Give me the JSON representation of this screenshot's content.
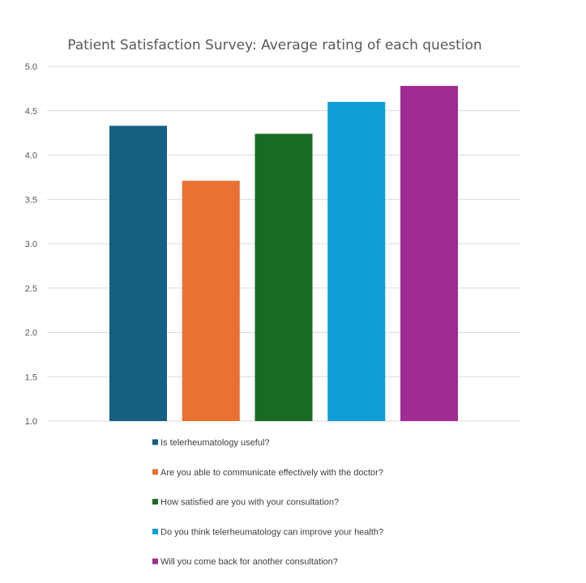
{
  "chart_data": {
    "type": "bar",
    "title": "Patient Satisfaction Survey: Average rating of each question",
    "xlabel": "",
    "ylabel": "",
    "ylim": [
      1.0,
      5.0
    ],
    "yticks": [
      "1.0",
      "1.5",
      "2.0",
      "2.5",
      "3.0",
      "3.5",
      "4.0",
      "4.5",
      "5.0"
    ],
    "grid": true,
    "legend_position": "bottom",
    "series": [
      {
        "name": "Is telerheumatology useful?",
        "value": 4.33,
        "color": "#156082"
      },
      {
        "name": "Are you able to communicate effectively with the doctor?",
        "value": 3.71,
        "color": "#E97132"
      },
      {
        "name": "How satisfied are you with your consultation?",
        "value": 4.24,
        "color": "#196B24"
      },
      {
        "name": "Do you think telerheumatology can improve your health?",
        "value": 4.6,
        "color": "#0F9ED5"
      },
      {
        "name": "Will you come back for another consultation?",
        "value": 4.78,
        "color": "#A02B93"
      }
    ]
  }
}
